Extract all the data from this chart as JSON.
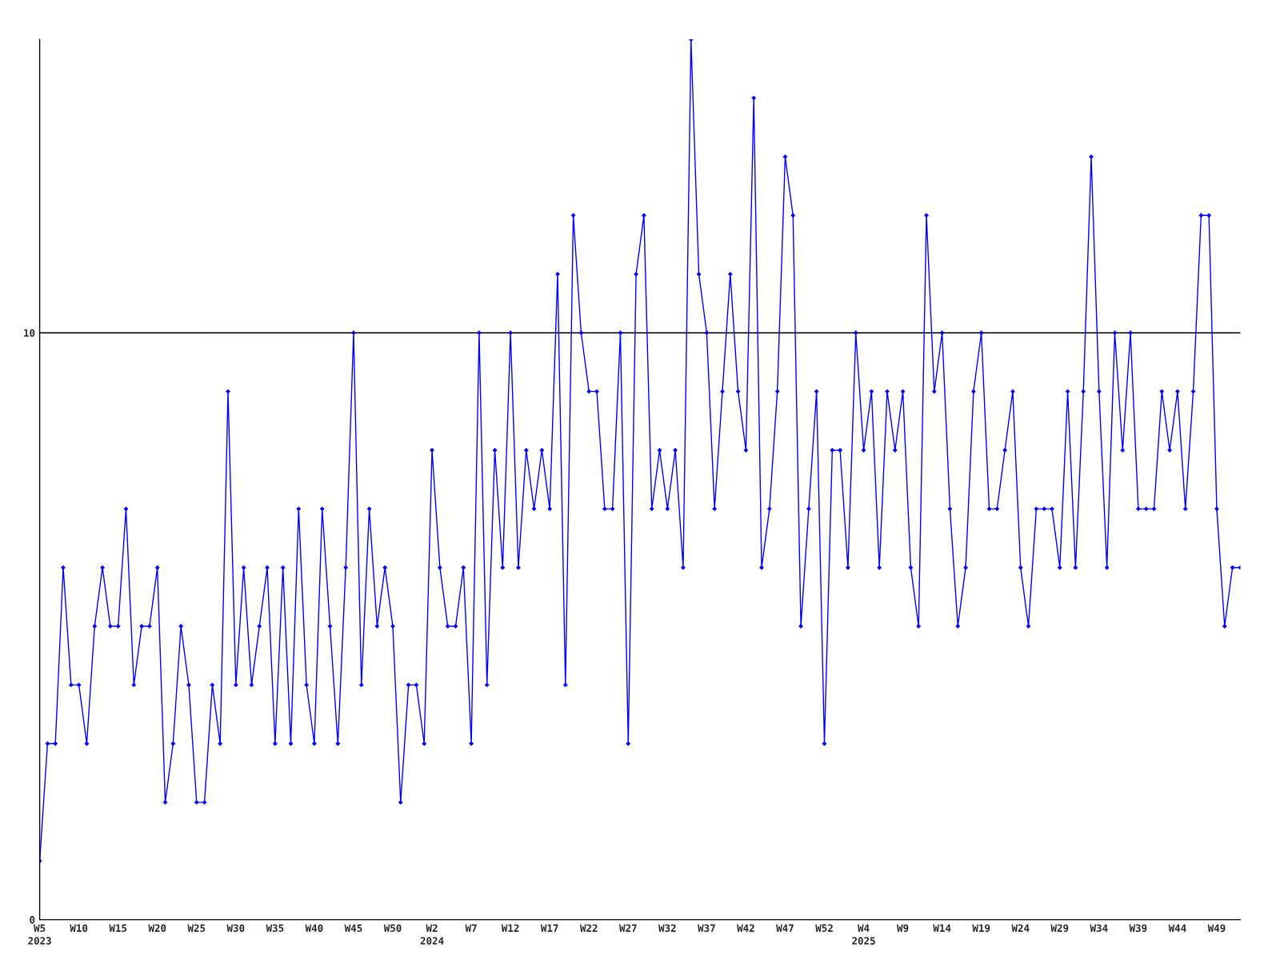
{
  "chart_data": {
    "type": "line",
    "categories": [
      "W5\n2023",
      null,
      null,
      null,
      null,
      "W10",
      null,
      null,
      null,
      null,
      "W15",
      null,
      null,
      null,
      null,
      "W20",
      null,
      null,
      null,
      null,
      "W25",
      null,
      null,
      null,
      null,
      "W30",
      null,
      null,
      null,
      null,
      "W35",
      null,
      null,
      null,
      null,
      "W40",
      null,
      null,
      null,
      null,
      "W45",
      null,
      null,
      null,
      null,
      "W50",
      null,
      null,
      null,
      null,
      "W2\n2024",
      null,
      null,
      null,
      null,
      "W7",
      null,
      null,
      null,
      null,
      "W12",
      null,
      null,
      null,
      null,
      "W17",
      null,
      null,
      null,
      null,
      "W22",
      null,
      null,
      null,
      null,
      "W27",
      null,
      null,
      null,
      null,
      "W32",
      null,
      null,
      null,
      null,
      "W37",
      null,
      null,
      null,
      null,
      "W42",
      null,
      null,
      null,
      null,
      "W47",
      null,
      null,
      null,
      null,
      "W52",
      null,
      null,
      null,
      null,
      "W4\n2025",
      null,
      null,
      null,
      null,
      "W9",
      null,
      null,
      null,
      null,
      "W14",
      null,
      null,
      null,
      null,
      "W19",
      null,
      null,
      null,
      null,
      "W24",
      null,
      null,
      null,
      null,
      "W29",
      null,
      null,
      null,
      null,
      "W34",
      null,
      null,
      null,
      null,
      "W39",
      null,
      null,
      null,
      null,
      "W44",
      null,
      null,
      null,
      null,
      "W49",
      null,
      null,
      null
    ],
    "series": [
      {
        "color": "#0000ff",
        "values": [
          1,
          3,
          3,
          6,
          4,
          4,
          3,
          5,
          6,
          5,
          5,
          7,
          4,
          5,
          5,
          6,
          2,
          3,
          5,
          4,
          2,
          2,
          4,
          3,
          9,
          4,
          6,
          4,
          5,
          6,
          3,
          6,
          3,
          7,
          4,
          3,
          7,
          5,
          3,
          6,
          10,
          4,
          7,
          5,
          6,
          5,
          2,
          4,
          4,
          3,
          8,
          6,
          5,
          5,
          6,
          3,
          10,
          4,
          8,
          6,
          10,
          6,
          8,
          7,
          8,
          7,
          11,
          4,
          12,
          10,
          9,
          9,
          7,
          7,
          10,
          3,
          11,
          12,
          7,
          8,
          7,
          8,
          6,
          15,
          11,
          10,
          7,
          9,
          11,
          9,
          8,
          14,
          6,
          7,
          9,
          13,
          12,
          5,
          7,
          9,
          3,
          8,
          8,
          6,
          10,
          8,
          9,
          6,
          9,
          8,
          9,
          6,
          5,
          12,
          9,
          10,
          7,
          5,
          6,
          9,
          10,
          7,
          7,
          8,
          9,
          6,
          5,
          7,
          7,
          7,
          6,
          9,
          6,
          9,
          13,
          9,
          6,
          10,
          8,
          10,
          7,
          7,
          7,
          9,
          8,
          9,
          7,
          9,
          12,
          12,
          7,
          5,
          6,
          6
        ]
      }
    ],
    "ylim": [
      0,
      15
    ],
    "yticks": [
      0,
      10
    ],
    "ref_lines": [
      {
        "axis": "y",
        "value": 10,
        "color": "#000000"
      }
    ],
    "marker": "diamond",
    "line_style": "solid",
    "grid": false,
    "legend": false
  }
}
